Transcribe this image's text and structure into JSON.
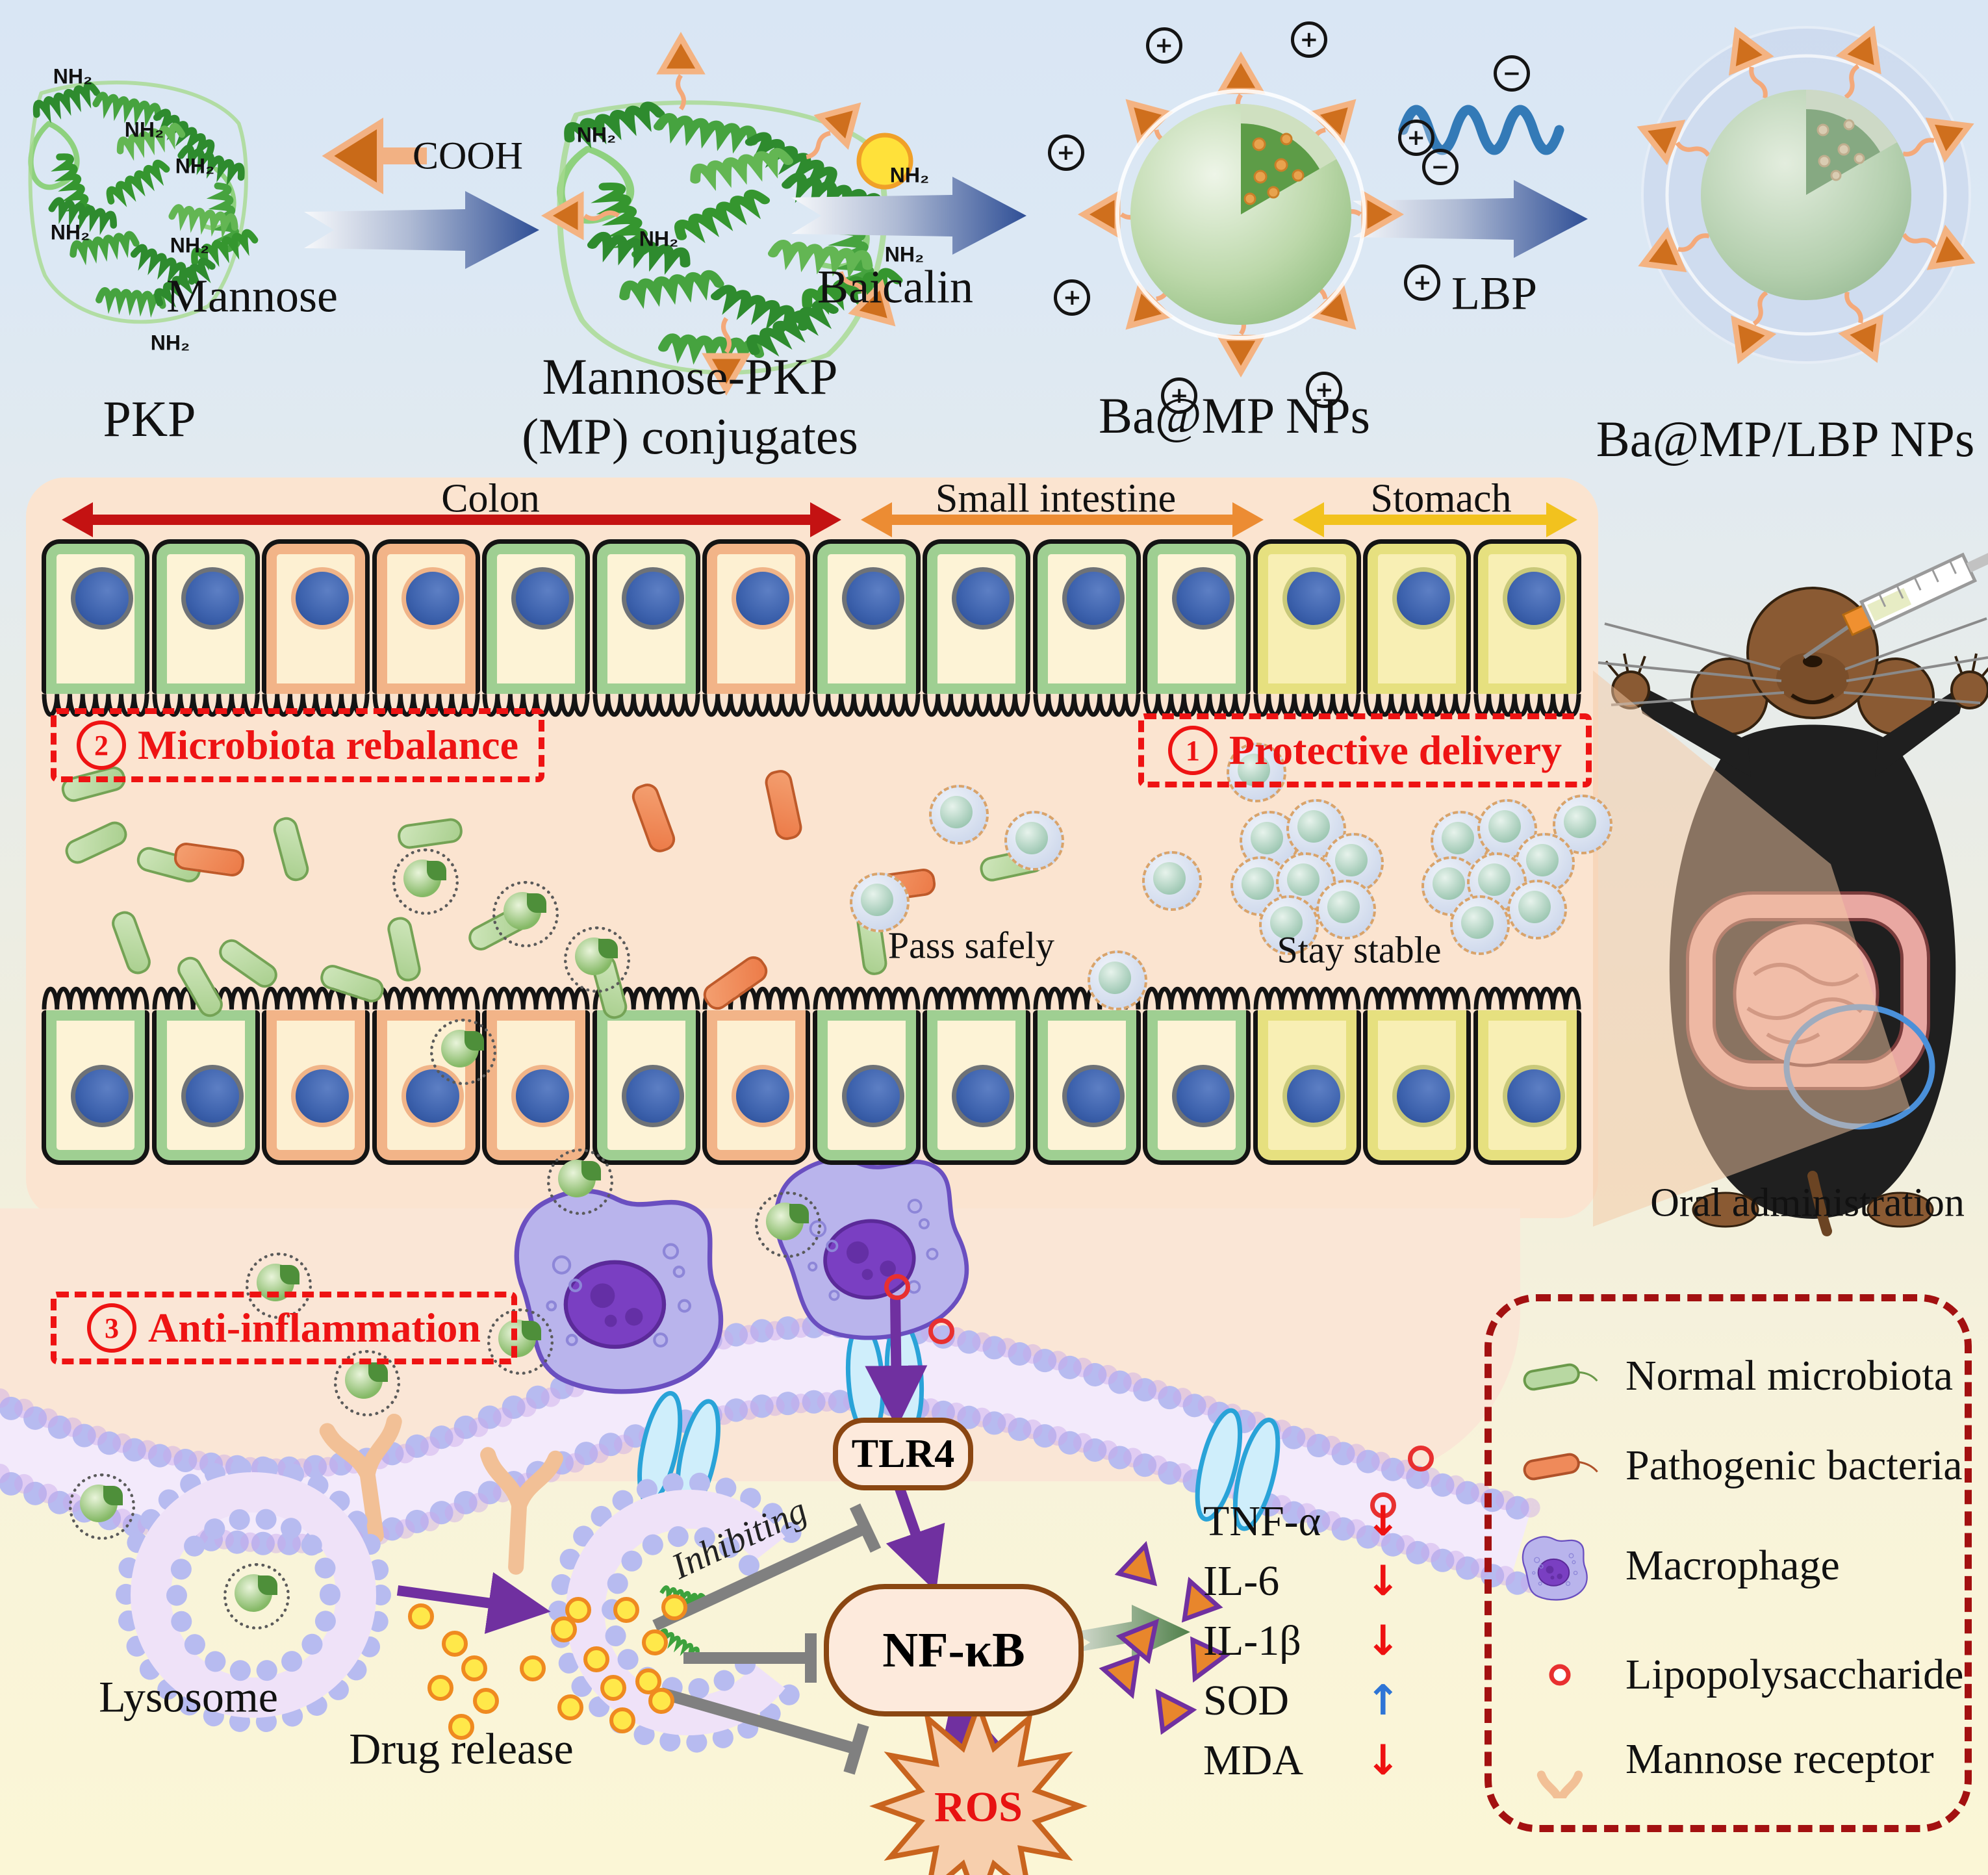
{
  "stages": {
    "pkp": "PKP",
    "mp_line1": "Mannose-PKP",
    "mp_line2": "(MP) conjugates",
    "bamp": "Ba@MP NPs",
    "balbp": "Ba@MP/LBP NPs"
  },
  "reagents": {
    "mannose": "Mannose",
    "baicalin": "Baicalin",
    "lbp": "LBP",
    "cooh": "COOH",
    "nh2": "NH₂",
    "plus": "+",
    "minus": "−"
  },
  "regions": {
    "colon": "Colon",
    "small_intestine": "Small intestine",
    "stomach": "Stomach"
  },
  "steps": {
    "one_num": "1",
    "one_label": "Protective delivery",
    "two_num": "2",
    "two_label": "Microbiota rebalance",
    "three_num": "3",
    "three_label": "Anti-inflammation"
  },
  "notes": {
    "pass_safely": "Pass safely",
    "stay_stable": "Stay stable",
    "oral": "Oral administration"
  },
  "pathway": {
    "tlr4": "TLR4",
    "nfkb": "NF-κB",
    "ros": "ROS",
    "inhibiting": "Inhibiting",
    "lysosome": "Lysosome",
    "drug_release": "Drug release"
  },
  "markers": [
    {
      "name": "TNF-α",
      "arrow": "↓",
      "trend": "down"
    },
    {
      "name": "IL-6",
      "arrow": "↓",
      "trend": "down"
    },
    {
      "name": "IL-1β",
      "arrow": "↓",
      "trend": "down"
    },
    {
      "name": "SOD",
      "arrow": "↑",
      "trend": "up"
    },
    {
      "name": "MDA",
      "arrow": "↓",
      "trend": "down"
    }
  ],
  "legend": {
    "items": [
      {
        "icon": "normal-bacterium-icon",
        "label": "Normal microbiota"
      },
      {
        "icon": "pathogenic-bacterium-icon",
        "label": "Pathogenic bacteria"
      },
      {
        "icon": "macrophage-icon",
        "label": "Macrophage"
      },
      {
        "icon": "lipopolysaccharide-icon",
        "label": "Lipopolysaccharide"
      },
      {
        "icon": "mannose-receptor-icon",
        "label": "Mannose receptor"
      }
    ]
  },
  "cells": {
    "top": [
      "g",
      "g",
      "o",
      "o",
      "g",
      "g",
      "o",
      "g",
      "g",
      "g",
      "g",
      "y",
      "y",
      "y"
    ],
    "bottom": [
      "g",
      "g",
      "o",
      "o",
      "o",
      "g",
      "o",
      "g",
      "g",
      "g",
      "g",
      "y",
      "y",
      "y"
    ]
  },
  "colors": {
    "step_red": "#ee1313",
    "legend_border": "#a31111",
    "colon_arrow": "#c41212",
    "si_arrow": "#ec8c33",
    "stomach_arrow": "#f2c21e",
    "purple": "#7030a0",
    "trend_down": "#ee1111",
    "trend_up": "#2e75d6"
  }
}
